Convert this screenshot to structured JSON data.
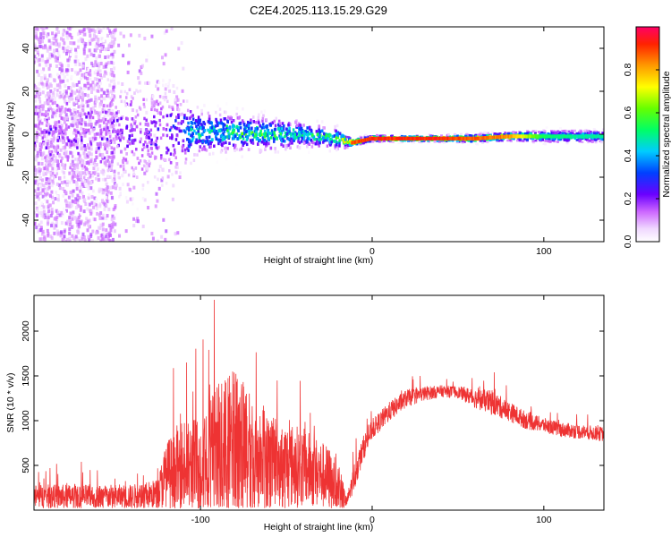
{
  "chart_data": [
    {
      "type": "heatmap",
      "title": "C2E4.2025.113.15.29.G29",
      "xlabel": "Height of straight line (km)",
      "ylabel": "Frequency (Hz)",
      "xlim": [
        -197,
        135
      ],
      "ylim": [
        -50,
        50
      ],
      "x_ticks": [
        "-100",
        "0",
        "100"
      ],
      "y_ticks": [
        "-40",
        "-20",
        "0",
        "20",
        "40"
      ],
      "grid": false,
      "colorbar": {
        "label": "Normalized spectral amplitude",
        "range": [
          0,
          1
        ],
        "ticks": [
          "0.0",
          "0.2",
          "0.4",
          "0.6",
          "0.8"
        ]
      },
      "ridge": {
        "description_points_x": [
          -197,
          -150,
          -120,
          -100,
          -80,
          -60,
          -40,
          -20,
          -12,
          0,
          20,
          40,
          60,
          80,
          100,
          120,
          135
        ],
        "center_freq_hz": [
          0,
          0,
          0,
          1,
          1,
          0,
          0,
          -2,
          -4,
          -2,
          -2,
          -2,
          -2,
          -1,
          -1,
          -1,
          -1
        ],
        "peak_amplitude": [
          0.25,
          0.25,
          0.3,
          0.5,
          0.55,
          0.55,
          0.5,
          0.55,
          0.9,
          0.95,
          0.95,
          0.95,
          0.9,
          0.85,
          0.55,
          0.5,
          0.5
        ],
        "spread_hz": [
          30,
          30,
          25,
          10,
          9,
          8,
          6,
          5,
          2,
          1.5,
          1.5,
          1.5,
          2,
          2,
          3,
          3,
          3
        ]
      }
    },
    {
      "type": "line",
      "title": "",
      "xlabel": "Height of straight line (km)",
      "ylabel": "SNR (10 * v/v)",
      "xlim": [
        -197,
        135
      ],
      "ylim": [
        0,
        2400
      ],
      "x_ticks": [
        "-100",
        "0",
        "100"
      ],
      "y_ticks": [
        "500",
        "1000",
        "1500",
        "2000"
      ],
      "grid": false,
      "series": [
        {
          "color": "#ee3333",
          "x": [
            -197,
            -180,
            -160,
            -140,
            -125,
            -120,
            -110,
            -100,
            -90,
            -80,
            -70,
            -60,
            -50,
            -40,
            -30,
            -20,
            -15,
            -10,
            -5,
            0,
            10,
            20,
            30,
            40,
            50,
            60,
            70,
            80,
            90,
            100,
            110,
            120,
            135
          ],
          "baseline": [
            150,
            150,
            150,
            150,
            180,
            400,
            450,
            500,
            550,
            600,
            550,
            500,
            500,
            480,
            400,
            300,
            80,
            400,
            700,
            900,
            1100,
            1250,
            1300,
            1330,
            1320,
            1250,
            1200,
            1100,
            1000,
            950,
            900,
            880,
            850
          ],
          "noise_amplitude": [
            250,
            250,
            250,
            250,
            300,
            700,
            900,
            1100,
            1300,
            1500,
            1200,
            1000,
            900,
            800,
            700,
            600,
            100,
            300,
            250,
            200,
            200,
            180,
            150,
            120,
            120,
            200,
            250,
            200,
            180,
            150,
            150,
            150,
            150
          ],
          "peak_value": [
            2350
          ]
        }
      ]
    }
  ]
}
